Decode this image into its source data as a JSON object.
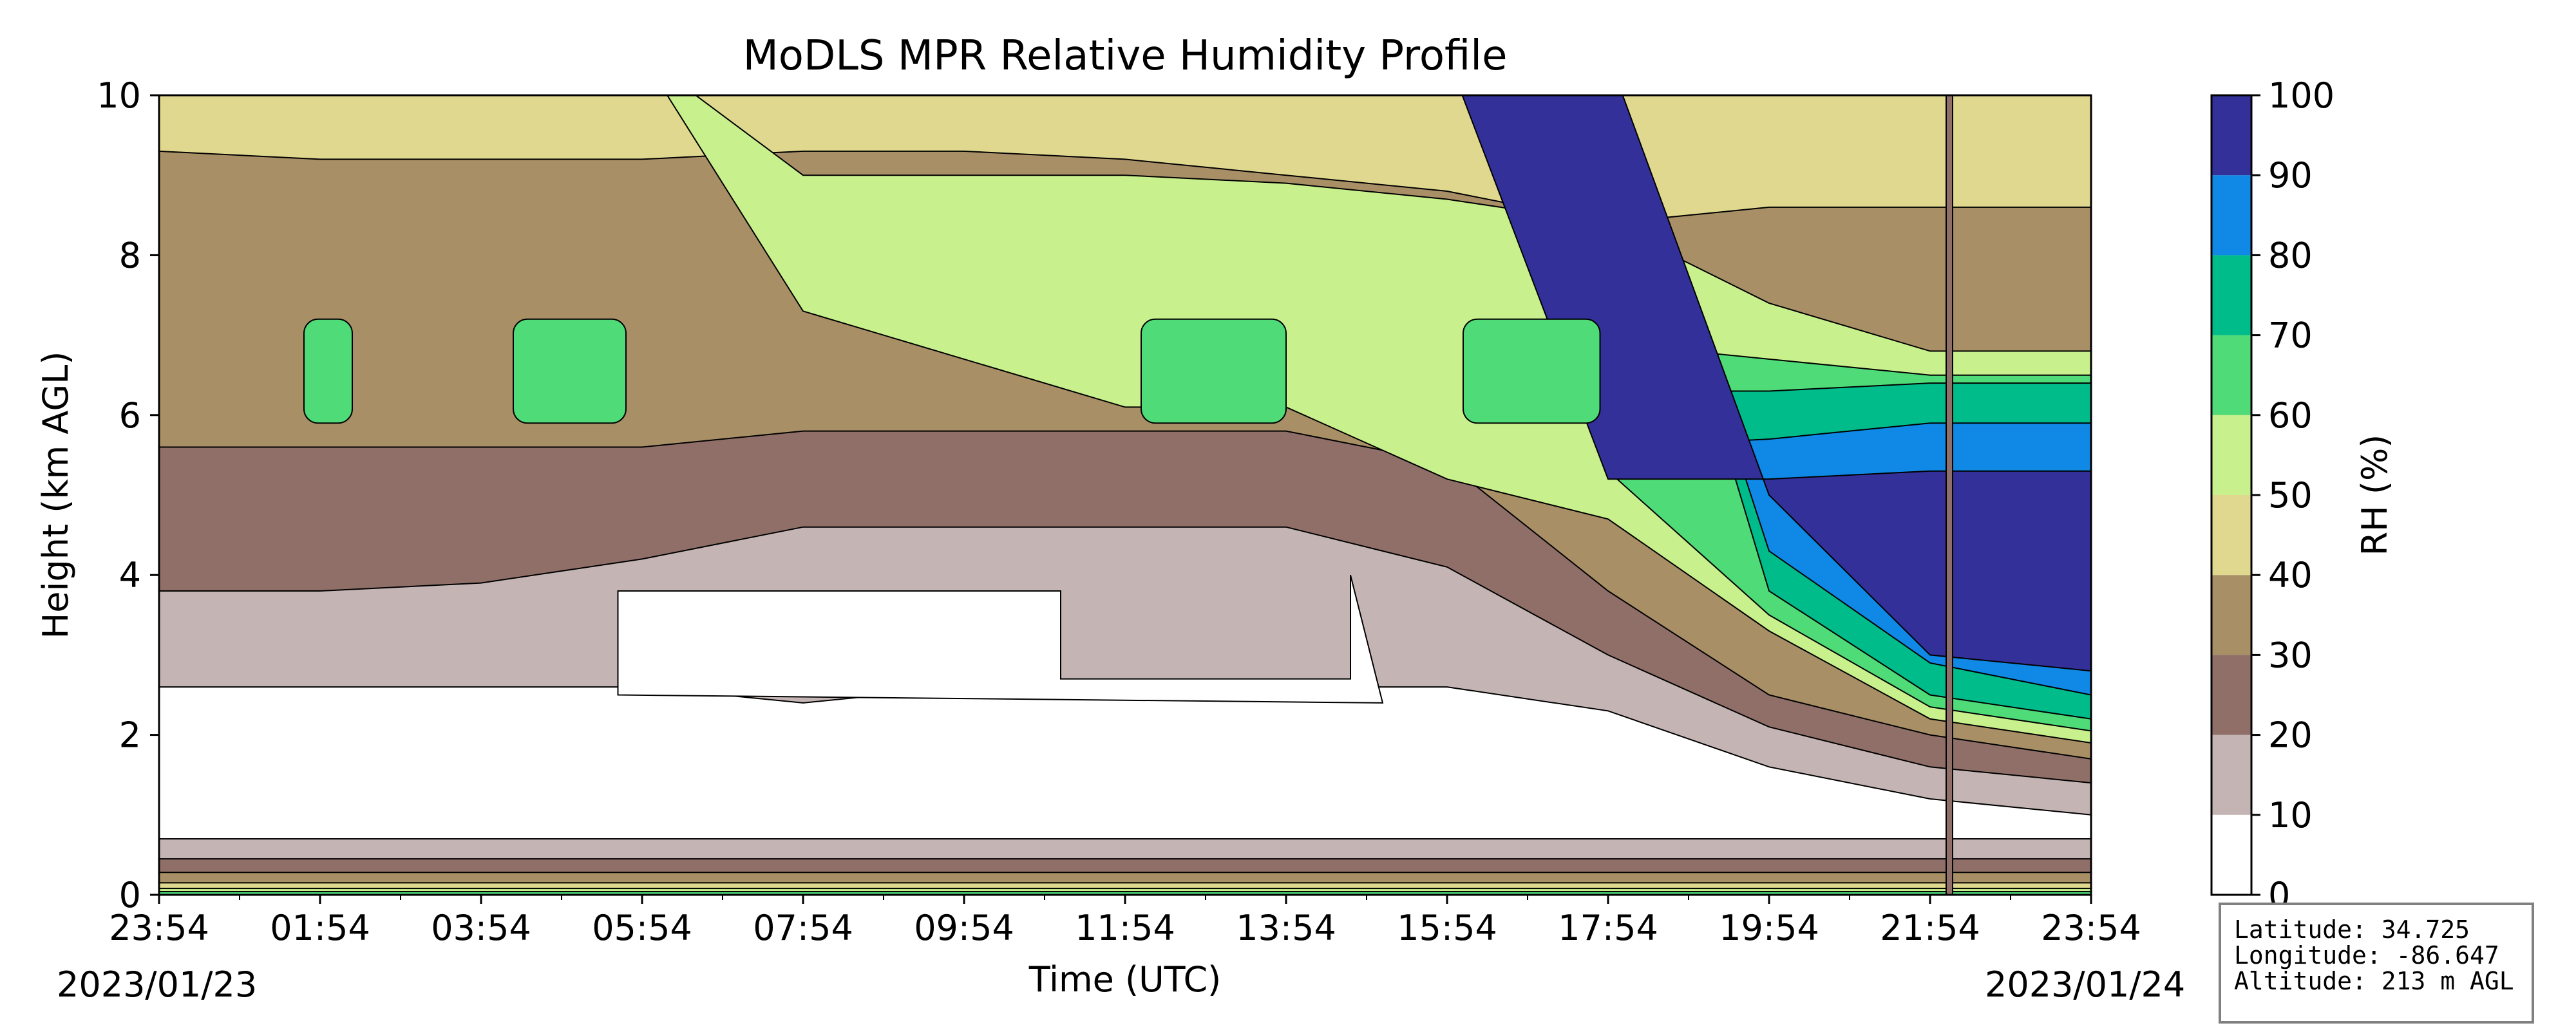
{
  "chart_data": {
    "type": "heatmap",
    "title": "MoDLS MPR Relative Humidity Profile",
    "xlabel": "Time (UTC)",
    "ylabel": "Height (km AGL)",
    "x_ticks": [
      "23:54",
      "01:54",
      "03:54",
      "05:54",
      "07:54",
      "09:54",
      "11:54",
      "13:54",
      "15:54",
      "17:54",
      "19:54",
      "21:54",
      "23:54"
    ],
    "start_date": "2023/01/23",
    "end_date": "2023/01/24",
    "ylim": [
      0,
      10
    ],
    "y_ticks": [
      0,
      2,
      4,
      6,
      8,
      10
    ],
    "colorbar": {
      "label": "RH (%)",
      "ticks": [
        0,
        10,
        20,
        30,
        40,
        50,
        60,
        70,
        80,
        90,
        100
      ],
      "levels": [
        {
          "min": 0,
          "max": 10,
          "color": "#ffffff"
        },
        {
          "min": 10,
          "max": 20,
          "color": "#c4b5b4"
        },
        {
          "min": 20,
          "max": 30,
          "color": "#8f6f68"
        },
        {
          "min": 30,
          "max": 40,
          "color": "#a88f66"
        },
        {
          "min": 40,
          "max": 50,
          "color": "#e0d88f"
        },
        {
          "min": 50,
          "max": 60,
          "color": "#c8f08c"
        },
        {
          "min": 60,
          "max": 70,
          "color": "#4fdb78"
        },
        {
          "min": 70,
          "max": 80,
          "color": "#00bb8a"
        },
        {
          "min": 80,
          "max": 90,
          "color": "#0f88e6"
        },
        {
          "min": 90,
          "max": 100,
          "color": "#33309a"
        }
      ]
    },
    "grid": false
  },
  "station": {
    "latitude": "Latitude: 34.725",
    "longitude": "Longitude: -86.647",
    "altitude": "Altitude: 213 m AGL"
  }
}
